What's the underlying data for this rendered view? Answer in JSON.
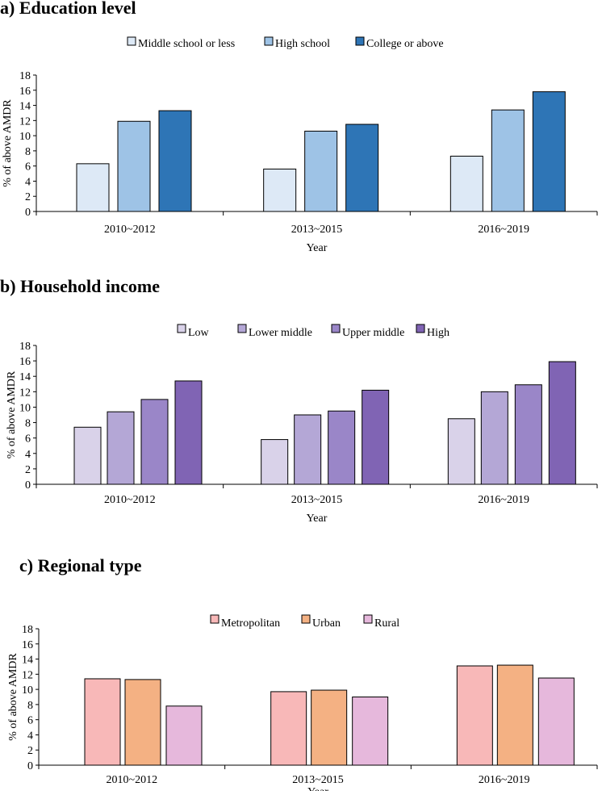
{
  "chart_data": [
    {
      "type": "bar",
      "title": "a) Education level",
      "xlabel": "Year",
      "ylabel": "% of above AMDR",
      "ylim": [
        0,
        18
      ],
      "yticks": [
        0,
        2,
        4,
        6,
        8,
        10,
        12,
        14,
        16,
        18
      ],
      "grid": false,
      "legend_position": "top",
      "categories": [
        "2010~2012",
        "2013~2015",
        "2016~2019"
      ],
      "series": [
        {
          "name": "Middle school or less",
          "color": "#dde9f6",
          "values": [
            6.3,
            5.6,
            7.3
          ]
        },
        {
          "name": "High school",
          "color": "#9ec3e6",
          "values": [
            11.9,
            10.6,
            13.4
          ]
        },
        {
          "name": "College or above",
          "color": "#2e75b6",
          "values": [
            13.3,
            11.5,
            15.8
          ]
        }
      ]
    },
    {
      "type": "bar",
      "title": "b) Household income",
      "xlabel": "Year",
      "ylabel": "% of above AMDR",
      "ylim": [
        0,
        18
      ],
      "yticks": [
        0,
        2,
        4,
        6,
        8,
        10,
        12,
        14,
        16,
        18
      ],
      "grid": false,
      "legend_position": "top",
      "categories": [
        "2010~2012",
        "2013~2015",
        "2016~2019"
      ],
      "series": [
        {
          "name": "Low",
          "color": "#d9d2e9",
          "values": [
            7.4,
            5.8,
            8.5
          ]
        },
        {
          "name": "Lower middle",
          "color": "#b4a7d6",
          "values": [
            9.4,
            9.0,
            12.0
          ]
        },
        {
          "name": "Upper middle",
          "color": "#9a86c8",
          "values": [
            11.0,
            9.5,
            12.9
          ]
        },
        {
          "name": "High",
          "color": "#8064b4",
          "values": [
            13.4,
            12.2,
            15.9
          ]
        }
      ]
    },
    {
      "type": "bar",
      "title": "c) Regional type",
      "xlabel": "Year",
      "ylabel": "% of above AMDR",
      "ylim": [
        0,
        18
      ],
      "yticks": [
        0,
        2,
        4,
        6,
        8,
        10,
        12,
        14,
        16,
        18
      ],
      "grid": false,
      "legend_position": "top",
      "categories": [
        "2010~2012",
        "2013~2015",
        "2016~2019"
      ],
      "series": [
        {
          "name": "Metropolitan",
          "color": "#f8b8b8",
          "values": [
            11.4,
            9.7,
            13.1
          ]
        },
        {
          "name": "Urban",
          "color": "#f4b183",
          "values": [
            11.3,
            9.9,
            13.2
          ]
        },
        {
          "name": "Rural",
          "color": "#e6b8dc",
          "values": [
            7.8,
            9.0,
            11.5
          ]
        }
      ]
    }
  ]
}
